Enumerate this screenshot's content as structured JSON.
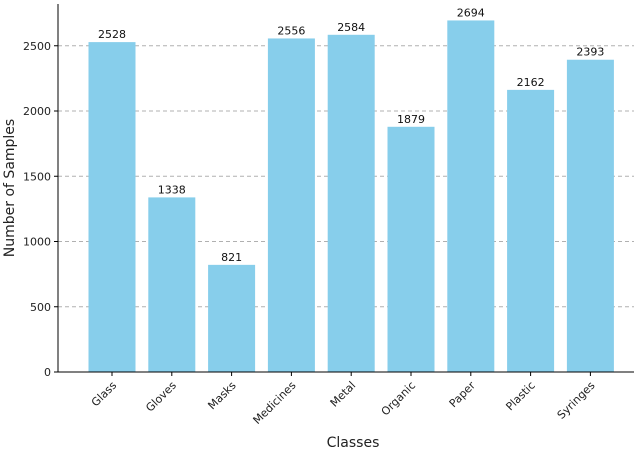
{
  "chart_data": {
    "type": "bar",
    "title": "",
    "xlabel": "Classes",
    "ylabel": "Number of Samples",
    "categories": [
      "Glass",
      "Gloves",
      "Masks",
      "Medicines",
      "Metal",
      "Organic",
      "Paper",
      "Plastic",
      "Syringes"
    ],
    "values": [
      2528,
      1338,
      821,
      2556,
      2584,
      1879,
      2694,
      2162,
      2393
    ],
    "ylim": [
      0,
      2820
    ],
    "yticks": [
      0,
      500,
      1000,
      1500,
      2000,
      2500
    ],
    "grid": true,
    "bar_color": "#87ceeb"
  }
}
